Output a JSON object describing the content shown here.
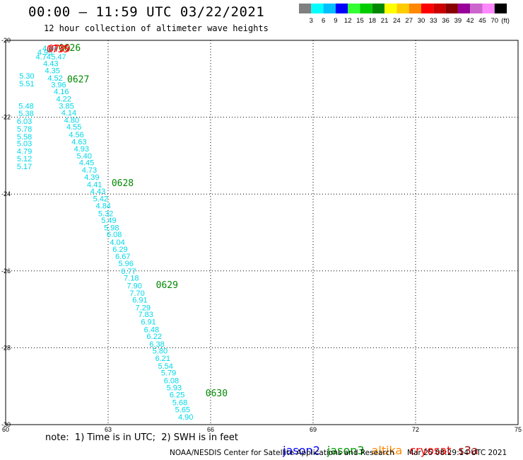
{
  "header": {
    "title": "00:00 – 11:59 UTC 03/22/2021",
    "subtitle": "12 hour collection of altimeter wave heights"
  },
  "colorbar": {
    "unit": "(ft)",
    "ticks": [
      "3",
      "6",
      "9",
      "12",
      "15",
      "18",
      "21",
      "24",
      "27",
      "30",
      "33",
      "36",
      "39",
      "42",
      "45",
      "70"
    ],
    "colors": [
      "#808080",
      "#00ffff",
      "#00bfff",
      "#0000ff",
      "#33ff33",
      "#00cc00",
      "#008800",
      "#ffff00",
      "#ffcc00",
      "#ff8800",
      "#ff0000",
      "#cc0000",
      "#880000",
      "#990099",
      "#cc66cc",
      "#ff88ff",
      "#000000"
    ]
  },
  "chart_data": {
    "type": "scatter",
    "xlim": [
      60,
      75
    ],
    "ylim": [
      -30,
      -20
    ],
    "x_ticks": [
      60,
      63,
      66,
      69,
      72,
      75
    ],
    "y_ticks": [
      -20,
      -22,
      -24,
      -26,
      -28,
      -30
    ],
    "x_tick_labels": [
      "60",
      "63",
      "66",
      "69",
      "72",
      "75"
    ],
    "y_tick_labels": [
      "-20",
      "-22",
      "-24",
      "-26",
      "-28",
      "-30"
    ],
    "grid": true,
    "swh_color": "#00d8e8",
    "time_color": "#008800",
    "series": [
      {
        "name": "jason3",
        "points": [
          {
            "x": 61.3,
            "y": -20.2,
            "swh": "4.44"
          },
          {
            "x": 61.15,
            "y": -20.3,
            "swh": "4.95"
          },
          {
            "x": 61.1,
            "y": -20.42,
            "swh": "4.74"
          },
          {
            "x": 61.55,
            "y": -20.42,
            "swh": "5.47"
          },
          {
            "x": 61.32,
            "y": -20.6,
            "swh": "4.43"
          },
          {
            "x": 61.37,
            "y": -20.78,
            "swh": "4.35"
          },
          {
            "x": 61.45,
            "y": -20.98,
            "swh": "4.52"
          },
          {
            "x": 61.55,
            "y": -21.15,
            "swh": "3.96"
          },
          {
            "x": 61.63,
            "y": -21.33,
            "swh": "4.16"
          },
          {
            "x": 61.7,
            "y": -21.52,
            "swh": "4.22"
          },
          {
            "x": 61.78,
            "y": -21.7,
            "swh": "3.85"
          },
          {
            "x": 61.85,
            "y": -21.88,
            "swh": "4.14"
          },
          {
            "x": 61.93,
            "y": -22.07,
            "swh": "4.80"
          },
          {
            "x": 62.0,
            "y": -22.25,
            "swh": "4.55"
          },
          {
            "x": 62.07,
            "y": -22.45,
            "swh": "4.56"
          },
          {
            "x": 62.15,
            "y": -22.63,
            "swh": "4.63"
          },
          {
            "x": 62.22,
            "y": -22.82,
            "swh": "4.93"
          },
          {
            "x": 62.3,
            "y": -23.0,
            "swh": "5.40"
          },
          {
            "x": 62.37,
            "y": -23.18,
            "swh": "4.45"
          },
          {
            "x": 62.45,
            "y": -23.37,
            "swh": "4.73"
          },
          {
            "x": 62.52,
            "y": -23.55,
            "swh": "4.39"
          },
          {
            "x": 62.6,
            "y": -23.75,
            "swh": "4.41"
          },
          {
            "x": 62.7,
            "y": -23.92,
            "swh": "4.43"
          },
          {
            "x": 62.78,
            "y": -24.12,
            "swh": "5.42"
          },
          {
            "x": 62.86,
            "y": -24.3,
            "swh": "4.84"
          },
          {
            "x": 62.93,
            "y": -24.5,
            "swh": "5.32"
          },
          {
            "x": 63.02,
            "y": -24.68,
            "swh": "5.49"
          },
          {
            "x": 63.1,
            "y": -24.87,
            "swh": "5.98"
          },
          {
            "x": 63.18,
            "y": -25.05,
            "swh": "6.08"
          },
          {
            "x": 63.27,
            "y": -25.25,
            "swh": "4.04"
          },
          {
            "x": 63.35,
            "y": -25.43,
            "swh": "6.29"
          },
          {
            "x": 63.43,
            "y": -25.62,
            "swh": "6.67"
          },
          {
            "x": 63.52,
            "y": -25.8,
            "swh": "5.96"
          },
          {
            "x": 63.6,
            "y": -26.0,
            "swh": "6.77"
          },
          {
            "x": 63.68,
            "y": -26.18,
            "swh": "7.18"
          },
          {
            "x": 63.77,
            "y": -26.38,
            "swh": "7.90"
          },
          {
            "x": 63.85,
            "y": -26.57,
            "swh": "7.70"
          },
          {
            "x": 63.93,
            "y": -26.75,
            "swh": "6.91"
          },
          {
            "x": 64.02,
            "y": -26.95,
            "swh": "7.29"
          },
          {
            "x": 64.1,
            "y": -27.13,
            "swh": "7.83"
          },
          {
            "x": 64.18,
            "y": -27.32,
            "swh": "6.91"
          },
          {
            "x": 64.27,
            "y": -27.52,
            "swh": "6.48"
          },
          {
            "x": 64.35,
            "y": -27.7,
            "swh": "6.22"
          },
          {
            "x": 64.43,
            "y": -27.9,
            "swh": "6.38"
          },
          {
            "x": 64.52,
            "y": -28.08,
            "swh": "5.80"
          },
          {
            "x": 64.6,
            "y": -28.27,
            "swh": "6.21"
          },
          {
            "x": 64.68,
            "y": -28.47,
            "swh": "5.54"
          },
          {
            "x": 64.77,
            "y": -28.65,
            "swh": "5.79"
          },
          {
            "x": 64.85,
            "y": -28.85,
            "swh": "6.08"
          },
          {
            "x": 64.93,
            "y": -29.03,
            "swh": "5.93"
          },
          {
            "x": 65.02,
            "y": -29.22,
            "swh": "6.25"
          },
          {
            "x": 65.1,
            "y": -29.42,
            "swh": "5.68"
          },
          {
            "x": 65.18,
            "y": -29.6,
            "swh": "5.65"
          },
          {
            "x": 65.27,
            "y": -29.8,
            "swh": "4.90"
          }
        ],
        "time_labels": [
          {
            "x": 61.55,
            "y": -20.18,
            "text": "0626"
          },
          {
            "x": 61.8,
            "y": -21.0,
            "text": "0627"
          },
          {
            "x": 63.1,
            "y": -23.7,
            "text": "0628"
          },
          {
            "x": 64.4,
            "y": -26.35,
            "text": "0629"
          },
          {
            "x": 65.85,
            "y": -29.17,
            "text": "0630"
          }
        ]
      },
      {
        "name": "cryosat",
        "points": [
          {
            "x": 60.6,
            "y": -21.7,
            "swh": "5.48"
          },
          {
            "x": 60.6,
            "y": -21.9,
            "swh": "5.38"
          },
          {
            "x": 60.55,
            "y": -22.1,
            "swh": "6.03"
          },
          {
            "x": 60.55,
            "y": -22.3,
            "swh": "5.78"
          },
          {
            "x": 60.55,
            "y": -22.5,
            "swh": "5.58"
          },
          {
            "x": 60.55,
            "y": -22.68,
            "swh": "5.03"
          },
          {
            "x": 60.55,
            "y": -22.88,
            "swh": "4.79"
          },
          {
            "x": 60.55,
            "y": -23.08,
            "swh": "5.12"
          },
          {
            "x": 60.55,
            "y": -23.28,
            "swh": "5.17"
          },
          {
            "x": 60.62,
            "y": -20.92,
            "swh": "5.30"
          },
          {
            "x": 60.62,
            "y": -21.12,
            "swh": "5.51"
          }
        ],
        "time_labels": [
          {
            "x": 61.25,
            "y": -20.2,
            "text": "0739"
          },
          {
            "x": 61.2,
            "y": -20.22,
            "text": "0735"
          }
        ]
      }
    ]
  },
  "note": "note:  1) Time is in UTC;  2) SWH is in feet",
  "satellites": [
    {
      "name": "jason2",
      "color": "#0000ff"
    },
    {
      "name": "jason3",
      "color": "#009900"
    },
    {
      "name": "altika",
      "color": "#ff8800"
    },
    {
      "name": "cryosat",
      "color": "#ff0000"
    },
    {
      "name": "s3a",
      "color": "#990000"
    }
  ],
  "footer": {
    "credit": "NOAA/NESDIS Center for Satellite Applications and Research",
    "timestamp": "Mar 25 08:29:14 UTC 2021"
  }
}
